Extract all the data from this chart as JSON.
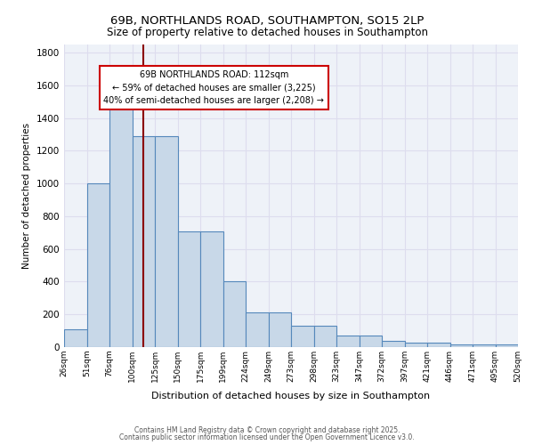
{
  "title_line1": "69B, NORTHLANDS ROAD, SOUTHAMPTON, SO15 2LP",
  "title_line2": "Size of property relative to detached houses in Southampton",
  "xlabel": "Distribution of detached houses by size in Southampton",
  "ylabel": "Number of detached properties",
  "categories": [
    "26sqm",
    "51sqm",
    "76sqm",
    "100sqm",
    "125sqm",
    "150sqm",
    "175sqm",
    "199sqm",
    "224sqm",
    "249sqm",
    "273sqm",
    "298sqm",
    "323sqm",
    "347sqm",
    "372sqm",
    "397sqm",
    "421sqm",
    "446sqm",
    "471sqm",
    "495sqm",
    "520sqm"
  ],
  "bar_heights": [
    110,
    1000,
    1500,
    1290,
    1290,
    710,
    710,
    400,
    210,
    210,
    130,
    130,
    70,
    70,
    40,
    25,
    25,
    15,
    15,
    15
  ],
  "bar_color": "#c8d8e8",
  "bar_edge_color": "#5588bb",
  "grid_color": "#ddddee",
  "bg_color": "#eef2f8",
  "vline_color": "#8b0000",
  "annotation_text": "69B NORTHLANDS ROAD: 112sqm\n← 59% of detached houses are smaller (3,225)\n40% of semi-detached houses are larger (2,208) →",
  "annotation_box_color": "#cc0000",
  "ylim": [
    0,
    1850
  ],
  "yticks": [
    0,
    200,
    400,
    600,
    800,
    1000,
    1200,
    1400,
    1600,
    1800
  ],
  "footer_line1": "Contains HM Land Registry data © Crown copyright and database right 2025.",
  "footer_line2": "Contains public sector information licensed under the Open Government Licence v3.0."
}
